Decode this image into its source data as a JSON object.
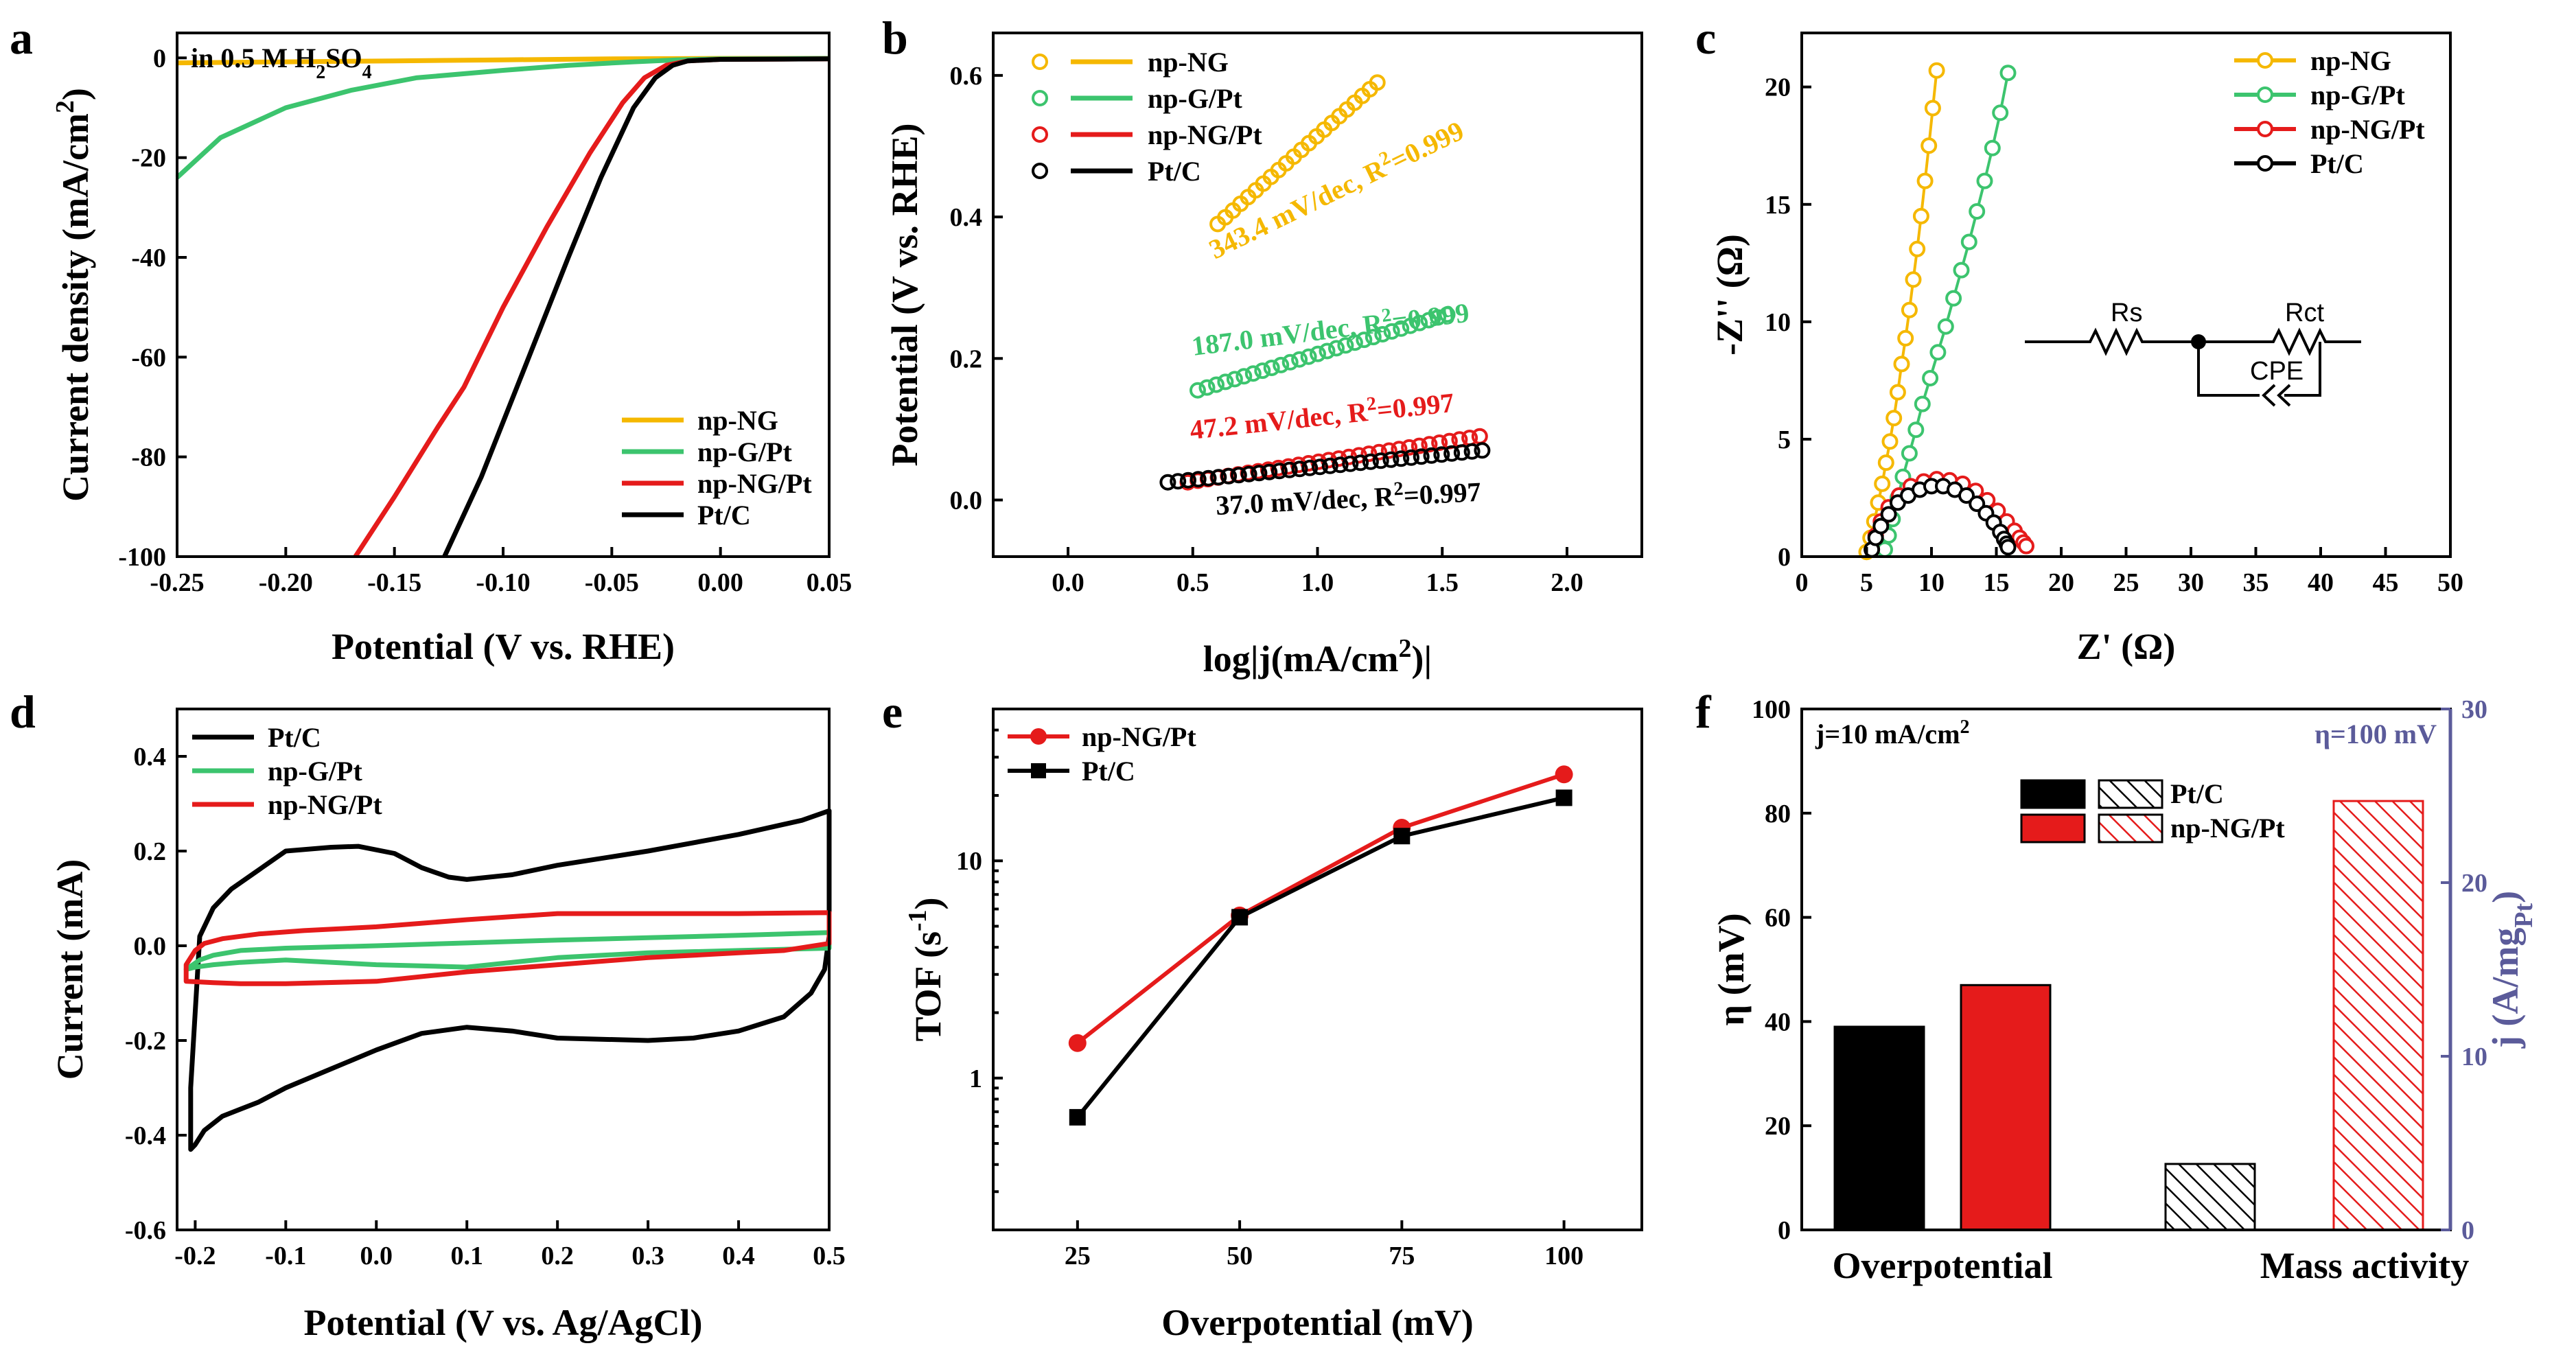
{
  "colors": {
    "npNG": "#f5b800",
    "npGPt": "#3cc46e",
    "npNGPt": "#e51b1b",
    "PtC": "#000000",
    "rightAxis": "#5b5b9a"
  },
  "panel_labels": [
    "a",
    "b",
    "c",
    "d",
    "e",
    "f"
  ],
  "chart_data": [
    {
      "id": "a",
      "type": "line",
      "title": "",
      "annotation": "in 0.5 M H₂SO₄",
      "xlabel": "Potential (V vs. RHE)",
      "ylabel": "Current density (mA/cm²)",
      "xlim": [
        -0.25,
        0.05
      ],
      "ylim": [
        -100,
        5
      ],
      "xticks": [
        -0.25,
        -0.2,
        -0.15,
        -0.1,
        -0.05,
        0.0,
        0.05
      ],
      "xtick_labels": [
        "-0.25",
        "-0.20",
        "-0.15",
        "-0.10",
        "-0.05",
        "0.00",
        "0.05"
      ],
      "yticks": [
        0,
        -20,
        -40,
        -60,
        -80,
        -100
      ],
      "ytick_labels": [
        "0",
        "-20",
        "-40",
        "-60",
        "-80",
        "-100"
      ],
      "legend_position": "bottom-right",
      "series": [
        {
          "name": "np-NG",
          "color_key": "npNG",
          "x": [
            -0.25,
            -0.2,
            -0.15,
            -0.1,
            -0.05,
            0.0,
            0.05
          ],
          "y": [
            -1.0,
            -0.8,
            -0.6,
            -0.4,
            -0.2,
            -0.1,
            -0.1
          ]
        },
        {
          "name": "np-G/Pt",
          "color_key": "npGPt",
          "x": [
            -0.25,
            -0.23,
            -0.2,
            -0.17,
            -0.14,
            -0.1,
            -0.07,
            -0.04,
            -0.02,
            0.0,
            0.05
          ],
          "y": [
            -24,
            -16,
            -10,
            -6.5,
            -4,
            -2.5,
            -1.5,
            -0.8,
            -0.4,
            -0.2,
            -0.1
          ]
        },
        {
          "name": "np-NG/Pt",
          "color_key": "npNGPt",
          "x": [
            -0.168,
            -0.15,
            -0.13,
            -0.118,
            -0.1,
            -0.08,
            -0.06,
            -0.045,
            -0.035,
            -0.025,
            -0.015,
            0.0,
            0.05
          ],
          "y": [
            -100,
            -88,
            -74,
            -66,
            -50,
            -34,
            -19,
            -9,
            -4,
            -1.5,
            -0.6,
            -0.3,
            -0.2
          ]
        },
        {
          "name": "Pt/C",
          "color_key": "PtC",
          "x": [
            -0.127,
            -0.11,
            -0.09,
            -0.07,
            -0.055,
            -0.04,
            -0.03,
            -0.022,
            -0.015,
            0.0,
            0.05
          ],
          "y": [
            -100,
            -84,
            -62,
            -40,
            -24,
            -10,
            -4,
            -1.5,
            -0.6,
            -0.3,
            -0.2
          ]
        }
      ]
    },
    {
      "id": "b",
      "type": "scatter",
      "title": "",
      "xlabel": "log|j(mA/cm²)|",
      "ylabel": "Potential (V vs. RHE)",
      "xlim": [
        -0.3,
        2.3
      ],
      "ylim": [
        -0.08,
        0.66
      ],
      "xticks": [
        0.0,
        0.5,
        1.0,
        1.5,
        2.0
      ],
      "xtick_labels": [
        "0.0",
        "0.5",
        "1.0",
        "1.5",
        "2.0"
      ],
      "yticks": [
        0.0,
        0.2,
        0.4,
        0.6
      ],
      "ytick_labels": [
        "0.0",
        "0.2",
        "0.4",
        "0.6"
      ],
      "legend_position": "top-left",
      "series": [
        {
          "name": "np-NG",
          "color_key": "npNG",
          "x0": 0.6,
          "x1": 1.24,
          "y0": 0.39,
          "y1": 0.59,
          "n": 22,
          "fit_label": "343.4 mV/dec, R²=0.999"
        },
        {
          "name": "np-G/Pt",
          "color_key": "npGPt",
          "x0": 0.52,
          "x1": 1.52,
          "y0": 0.155,
          "y1": 0.262,
          "n": 28,
          "fit_label": "187.0 mV/dec, R²=0.999"
        },
        {
          "name": "np-NG/Pt",
          "color_key": "npNGPt",
          "x0": 0.48,
          "x1": 1.65,
          "y0": 0.025,
          "y1": 0.09,
          "n": 30,
          "fit_label": "47.2 mV/dec, R²=0.997"
        },
        {
          "name": "Pt/C",
          "color_key": "PtC",
          "x0": 0.4,
          "x1": 1.66,
          "y0": 0.025,
          "y1": 0.07,
          "n": 32,
          "fit_label": "37.0 mV/dec, R²=0.997"
        }
      ]
    },
    {
      "id": "c",
      "type": "scatter",
      "title": "",
      "xlabel": "Z' (Ω)",
      "ylabel": "-Z'' (Ω)",
      "xlim": [
        0,
        50
      ],
      "ylim": [
        0,
        22.3
      ],
      "xticks": [
        0,
        5,
        10,
        15,
        20,
        25,
        30,
        35,
        40,
        45,
        50
      ],
      "xtick_labels": [
        "0",
        "5",
        "10",
        "15",
        "20",
        "25",
        "30",
        "35",
        "40",
        "45",
        "50"
      ],
      "yticks": [
        0,
        5,
        10,
        15,
        20
      ],
      "ytick_labels": [
        "0",
        "5",
        "10",
        "15",
        "20"
      ],
      "legend_position": "top-right",
      "circuit_labels": {
        "rs": "Rs",
        "rct": "Rct",
        "cpe": "CPE"
      },
      "series": [
        {
          "name": "np-NG",
          "color_key": "npNG",
          "x": [
            5.0,
            5.3,
            5.6,
            5.9,
            6.2,
            6.5,
            6.8,
            7.1,
            7.4,
            7.7,
            8.0,
            8.3,
            8.6,
            8.9,
            9.2,
            9.5,
            9.8,
            10.1,
            10.4
          ],
          "y": [
            0.2,
            0.8,
            1.5,
            2.3,
            3.1,
            4.0,
            4.9,
            5.9,
            7.0,
            8.2,
            9.3,
            10.5,
            11.8,
            13.1,
            14.5,
            16.0,
            17.5,
            19.1,
            20.7
          ]
        },
        {
          "name": "np-G/Pt",
          "color_key": "npGPt",
          "x": [
            6.4,
            6.7,
            7.0,
            7.4,
            7.8,
            8.3,
            8.8,
            9.3,
            9.9,
            10.5,
            11.1,
            11.7,
            12.3,
            12.9,
            13.5,
            14.1,
            14.7,
            15.3,
            15.9
          ],
          "y": [
            0.3,
            0.9,
            1.6,
            2.5,
            3.4,
            4.4,
            5.4,
            6.5,
            7.6,
            8.7,
            9.8,
            11.0,
            12.2,
            13.4,
            14.7,
            16.0,
            17.4,
            18.9,
            20.6
          ]
        },
        {
          "name": "np-NG/Pt",
          "color_key": "npNGPt",
          "x": [
            5.4,
            5.7,
            6.1,
            6.7,
            7.5,
            8.4,
            9.4,
            10.4,
            11.4,
            12.4,
            13.4,
            14.3,
            15.1,
            15.8,
            16.4,
            16.8,
            17.1,
            17.3
          ],
          "y": [
            0.3,
            0.9,
            1.5,
            2.1,
            2.6,
            3.0,
            3.2,
            3.3,
            3.25,
            3.1,
            2.8,
            2.4,
            1.95,
            1.5,
            1.1,
            0.8,
            0.6,
            0.45
          ]
        },
        {
          "name": "Pt/C",
          "color_key": "PtC",
          "x": [
            5.4,
            5.7,
            6.1,
            6.7,
            7.4,
            8.2,
            9.1,
            10.0,
            10.9,
            11.8,
            12.7,
            13.5,
            14.2,
            14.8,
            15.3,
            15.6,
            15.8,
            15.9
          ],
          "y": [
            0.3,
            0.8,
            1.3,
            1.8,
            2.3,
            2.6,
            2.85,
            3.0,
            3.0,
            2.85,
            2.6,
            2.25,
            1.85,
            1.45,
            1.05,
            0.75,
            0.55,
            0.4
          ]
        }
      ]
    },
    {
      "id": "d",
      "type": "line",
      "title": "",
      "xlabel": "Potential (V vs. Ag/AgCl)",
      "ylabel": "Current (mA)",
      "xlim": [
        -0.22,
        0.5
      ],
      "ylim": [
        -0.6,
        0.5
      ],
      "xticks": [
        -0.2,
        -0.1,
        0.0,
        0.1,
        0.2,
        0.3,
        0.4,
        0.5
      ],
      "xtick_labels": [
        "-0.2",
        "-0.1",
        "0.0",
        "0.1",
        "0.2",
        "0.3",
        "0.4",
        "0.5"
      ],
      "yticks": [
        -0.6,
        -0.4,
        -0.2,
        0.0,
        0.2,
        0.4
      ],
      "ytick_labels": [
        "-0.6",
        "-0.4",
        "-0.2",
        "0.0",
        "0.2",
        "0.4"
      ],
      "legend_position": "top-left",
      "series": [
        {
          "name": "Pt/C",
          "color_key": "PtC",
          "closed": true,
          "x": [
            -0.205,
            -0.195,
            -0.18,
            -0.16,
            -0.13,
            -0.1,
            -0.05,
            -0.02,
            0.02,
            0.05,
            0.08,
            0.1,
            0.15,
            0.2,
            0.3,
            0.4,
            0.47,
            0.5,
            0.5,
            0.495,
            0.48,
            0.45,
            0.4,
            0.35,
            0.3,
            0.2,
            0.15,
            0.1,
            0.05,
            0.0,
            -0.05,
            -0.1,
            -0.13,
            -0.15,
            -0.17,
            -0.19,
            -0.2,
            -0.205
          ],
          "y": [
            -0.3,
            0.02,
            0.08,
            0.12,
            0.16,
            0.2,
            0.208,
            0.21,
            0.195,
            0.165,
            0.145,
            0.14,
            0.15,
            0.17,
            0.2,
            0.235,
            0.265,
            0.285,
            0.02,
            -0.05,
            -0.1,
            -0.15,
            -0.18,
            -0.195,
            -0.2,
            -0.195,
            -0.18,
            -0.172,
            -0.185,
            -0.22,
            -0.26,
            -0.3,
            -0.33,
            -0.345,
            -0.36,
            -0.39,
            -0.42,
            -0.43
          ]
        },
        {
          "name": "np-G/Pt",
          "color_key": "npGPt",
          "closed": true,
          "x": [
            -0.21,
            -0.195,
            -0.18,
            -0.15,
            -0.1,
            0.0,
            0.1,
            0.2,
            0.3,
            0.4,
            0.5,
            0.5,
            0.4,
            0.3,
            0.2,
            0.1,
            0.0,
            -0.1,
            -0.15,
            -0.18,
            -0.2,
            -0.21
          ],
          "y": [
            -0.05,
            -0.03,
            -0.02,
            -0.01,
            -0.005,
            0.0,
            0.006,
            0.012,
            0.017,
            0.022,
            0.028,
            -0.005,
            -0.01,
            -0.015,
            -0.025,
            -0.045,
            -0.04,
            -0.03,
            -0.035,
            -0.04,
            -0.045,
            -0.05
          ]
        },
        {
          "name": "np-NG/Pt",
          "color_key": "npNGPt",
          "closed": true,
          "x": [
            -0.21,
            -0.2,
            -0.19,
            -0.17,
            -0.13,
            -0.08,
            0.0,
            0.1,
            0.2,
            0.3,
            0.4,
            0.5,
            0.5,
            0.45,
            0.4,
            0.3,
            0.2,
            0.1,
            0.0,
            -0.1,
            -0.15,
            -0.18,
            -0.2,
            -0.21
          ],
          "y": [
            -0.04,
            -0.01,
            0.005,
            0.015,
            0.025,
            0.032,
            0.04,
            0.055,
            0.068,
            0.068,
            0.068,
            0.07,
            0.005,
            -0.01,
            -0.015,
            -0.025,
            -0.04,
            -0.055,
            -0.075,
            -0.08,
            -0.08,
            -0.078,
            -0.076,
            -0.075
          ]
        }
      ]
    },
    {
      "id": "e",
      "type": "line",
      "title": "",
      "xlabel": "Overpotential (mV)",
      "ylabel": "TOF (s⁻¹)",
      "yscale": "log",
      "xlim": [
        12,
        112
      ],
      "ylim": [
        0.2,
        50
      ],
      "xticks": [
        25,
        50,
        75,
        100
      ],
      "xtick_labels": [
        "25",
        "50",
        "75",
        "100"
      ],
      "yticks": [
        1,
        10
      ],
      "ytick_labels": [
        "1",
        "10"
      ],
      "legend_position": "top-left",
      "series": [
        {
          "name": "np-NG/Pt",
          "color_key": "npNGPt",
          "marker": "circle",
          "x": [
            25,
            50,
            75,
            100
          ],
          "y": [
            1.45,
            5.6,
            14.2,
            25.0
          ]
        },
        {
          "name": "Pt/C",
          "color_key": "PtC",
          "marker": "square",
          "x": [
            25,
            50,
            75,
            100
          ],
          "y": [
            0.66,
            5.5,
            13.0,
            19.5
          ]
        }
      ]
    },
    {
      "id": "f",
      "type": "bar",
      "title": "",
      "categories": [
        "Overpotential",
        "Mass activity"
      ],
      "ylabel": "η (mV)",
      "ylabel_right": "j (A/mg_Pt)",
      "ylim": [
        0,
        100
      ],
      "ylim_right": [
        0,
        30
      ],
      "yticks": [
        0,
        20,
        40,
        60,
        80,
        100
      ],
      "ytick_labels": [
        "0",
        "20",
        "40",
        "60",
        "80",
        "100"
      ],
      "yticks_right": [
        0,
        10,
        20,
        30
      ],
      "ytick_labels_right": [
        "0",
        "10",
        "20",
        "30"
      ],
      "annotation_left": "j=10 mA/cm²",
      "annotation_right": "η=100 mV",
      "legend_position": "top-center",
      "series": [
        {
          "name": "Pt/C",
          "color_key": "PtC",
          "overpotential_mV": 39,
          "mass_activity_A_per_mgPt": 3.8
        },
        {
          "name": "np-NG/Pt",
          "color_key": "npNGPt",
          "overpotential_mV": 47,
          "mass_activity_A_per_mgPt": 24.7
        }
      ]
    }
  ]
}
